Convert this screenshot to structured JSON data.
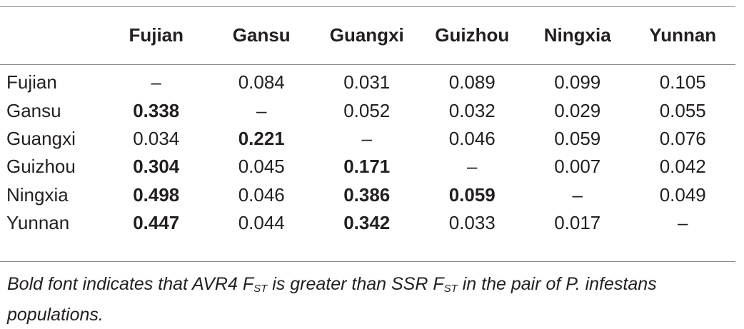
{
  "table": {
    "columns": [
      "",
      "Fujian",
      "Gansu",
      "Guangxi",
      "Guizhou",
      "Ningxia",
      "Yunnan"
    ],
    "rows": [
      {
        "label": "Fujian",
        "cells": [
          {
            "v": "–",
            "b": false
          },
          {
            "v": "0.084",
            "b": false
          },
          {
            "v": "0.031",
            "b": false
          },
          {
            "v": "0.089",
            "b": false
          },
          {
            "v": "0.099",
            "b": false
          },
          {
            "v": "0.105",
            "b": false
          }
        ]
      },
      {
        "label": "Gansu",
        "cells": [
          {
            "v": "0.338",
            "b": true
          },
          {
            "v": "–",
            "b": false
          },
          {
            "v": "0.052",
            "b": false
          },
          {
            "v": "0.032",
            "b": false
          },
          {
            "v": "0.029",
            "b": false
          },
          {
            "v": "0.055",
            "b": false
          }
        ]
      },
      {
        "label": "Guangxi",
        "cells": [
          {
            "v": "0.034",
            "b": false
          },
          {
            "v": "0.221",
            "b": true
          },
          {
            "v": "–",
            "b": false
          },
          {
            "v": "0.046",
            "b": false
          },
          {
            "v": "0.059",
            "b": false
          },
          {
            "v": "0.076",
            "b": false
          }
        ]
      },
      {
        "label": "Guizhou",
        "cells": [
          {
            "v": "0.304",
            "b": true
          },
          {
            "v": "0.045",
            "b": false
          },
          {
            "v": "0.171",
            "b": true
          },
          {
            "v": "–",
            "b": false
          },
          {
            "v": "0.007",
            "b": false
          },
          {
            "v": "0.042",
            "b": false
          }
        ]
      },
      {
        "label": "Ningxia",
        "cells": [
          {
            "v": "0.498",
            "b": true
          },
          {
            "v": "0.046",
            "b": false
          },
          {
            "v": "0.386",
            "b": true
          },
          {
            "v": "0.059",
            "b": true
          },
          {
            "v": "–",
            "b": false
          },
          {
            "v": "0.049",
            "b": false
          }
        ]
      },
      {
        "label": "Yunnan",
        "cells": [
          {
            "v": "0.447",
            "b": true
          },
          {
            "v": "0.044",
            "b": false
          },
          {
            "v": "0.342",
            "b": true
          },
          {
            "v": "0.033",
            "b": false
          },
          {
            "v": "0.017",
            "b": false
          },
          {
            "v": "–",
            "b": false
          }
        ]
      }
    ]
  },
  "footnote": {
    "part1": "Bold font indicates that AVR4 F",
    "sub1": "ST",
    "part2": " is greater than SSR F",
    "sub2": "ST",
    "part3": " in the pair of P. infestans populations."
  }
}
